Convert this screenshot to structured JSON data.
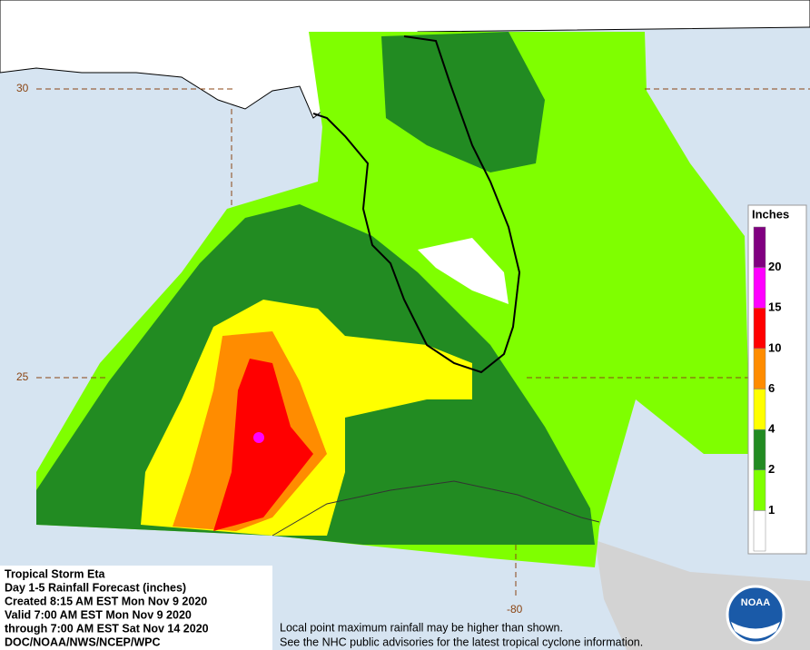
{
  "map": {
    "info": [
      "Tropical Storm Eta",
      "Day 1-5 Rainfall Forecast (inches)",
      "Created 8:15 AM EST Mon Nov 9 2020",
      "Valid 7:00 AM EST Mon Nov 9 2020",
      "through 7:00 AM EST Sat Nov 14 2020",
      "DOC/NOAA/NWS/NCEP/WPC"
    ],
    "footer": [
      "Local point maximum rainfall may be higher than shown.",
      "See the NHC public advisories for the latest tropical cyclone information."
    ],
    "logo": "NOAA",
    "graticule": {
      "lat_labels": [
        30,
        25
      ],
      "lon_labels": [
        -80
      ]
    },
    "legend": {
      "title": "Inches",
      "ticks": [
        1,
        2,
        4,
        6,
        10,
        15,
        20
      ],
      "colors": [
        "#ffffff",
        "#7fff00",
        "#228b22",
        "#ffff00",
        "#ff8c00",
        "#ff0000",
        "#ff00ff",
        "#800080"
      ]
    }
  }
}
